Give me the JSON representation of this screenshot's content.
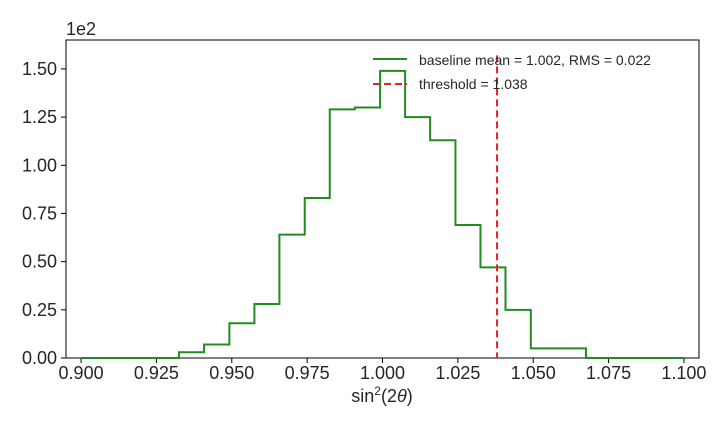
{
  "chart_data": {
    "type": "histogram",
    "xlabel_base": "sin",
    "xlabel_sup": "2",
    "xlabel_rest": "(2",
    "xlabel_theta": "θ",
    "xlabel_close": ")",
    "y_offset_label": "1e2",
    "xlim": [
      0.895,
      1.105
    ],
    "ylim": [
      0,
      1.65
    ],
    "x_ticks": [
      0.9,
      0.925,
      0.95,
      0.975,
      1.0,
      1.025,
      1.05,
      1.075,
      1.1
    ],
    "x_tick_labels": [
      "0.900",
      "0.925",
      "0.950",
      "0.975",
      "1.000",
      "1.025",
      "1.050",
      "1.075",
      "1.100"
    ],
    "y_ticks": [
      0,
      0.25,
      0.5,
      0.75,
      1.0,
      1.25,
      1.5
    ],
    "y_tick_labels": [
      "0.00",
      "0.25",
      "0.50",
      "0.75",
      "1.00",
      "1.25",
      "1.50"
    ],
    "bin_edges": [
      0.9,
      0.9325,
      0.9408,
      0.9492,
      0.9575,
      0.9658,
      0.9742,
      0.9825,
      0.9908,
      0.9992,
      1.0075,
      1.0158,
      1.0242,
      1.0325,
      1.0408,
      1.0492,
      1.0575,
      1.0675,
      1.1
    ],
    "counts": [
      0,
      0.03,
      0.07,
      0.18,
      0.28,
      0.64,
      0.83,
      1.29,
      1.3,
      1.49,
      1.25,
      1.13,
      0.69,
      0.47,
      0.25,
      0.05,
      0.05,
      0
    ],
    "threshold": 1.038,
    "grid": false,
    "legend_position": "top-right",
    "series": [
      {
        "name": "baseline mean = 1.002, RMS = 0.022",
        "color": "#228B22",
        "style": "step"
      },
      {
        "name": "threshold = 1.038",
        "color": "#e8202a",
        "style": "dashed"
      }
    ]
  }
}
